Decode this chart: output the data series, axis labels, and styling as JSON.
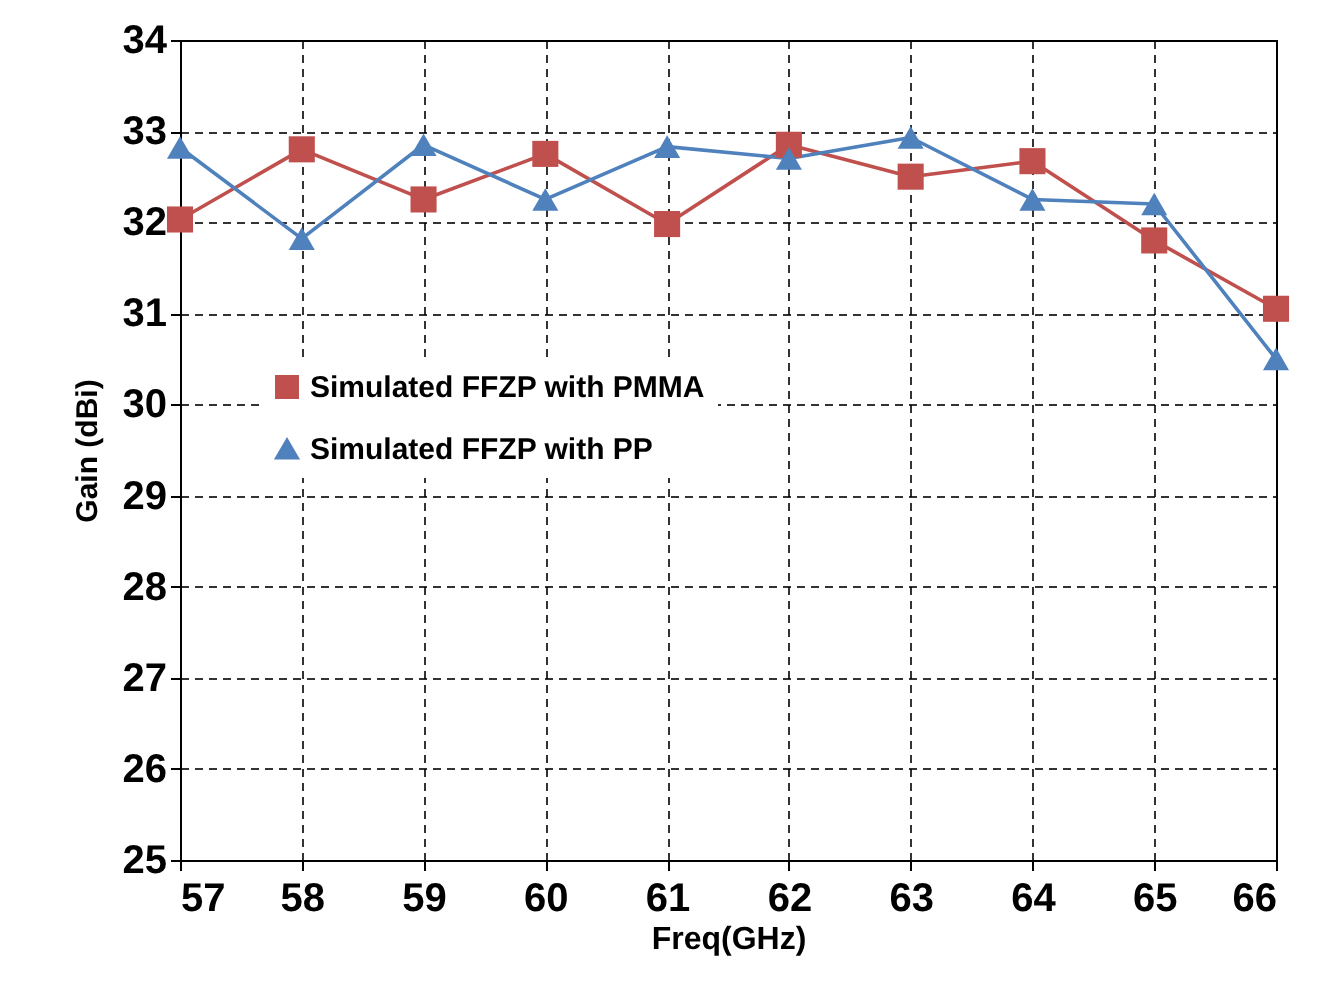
{
  "chart_data": {
    "type": "line",
    "xlabel": "Freq(GHz)",
    "ylabel": "Gain (dBi)",
    "x": [
      57,
      58,
      59,
      60,
      61,
      62,
      63,
      64,
      65,
      66
    ],
    "xlim": [
      57,
      66
    ],
    "xticks": [
      57,
      58,
      59,
      60,
      61,
      62,
      63,
      64,
      65,
      66
    ],
    "ylim": [
      25,
      34
    ],
    "yticks": [
      25,
      26,
      27,
      28,
      29,
      30,
      31,
      32,
      33,
      34
    ],
    "grid": true,
    "legend": "left",
    "series": [
      {
        "name": "Simulated FFZP with PMMA",
        "color": "#c0504d",
        "marker": "square",
        "values": [
          32.03,
          32.8,
          32.25,
          32.75,
          31.98,
          32.85,
          32.5,
          32.67,
          31.8,
          31.05
        ]
      },
      {
        "name": "Simulated FFZP with PP",
        "color": "#4f81bd",
        "marker": "triangle",
        "values": [
          32.82,
          31.82,
          32.85,
          32.25,
          32.83,
          32.7,
          32.93,
          32.25,
          32.2,
          30.5
        ]
      }
    ]
  }
}
